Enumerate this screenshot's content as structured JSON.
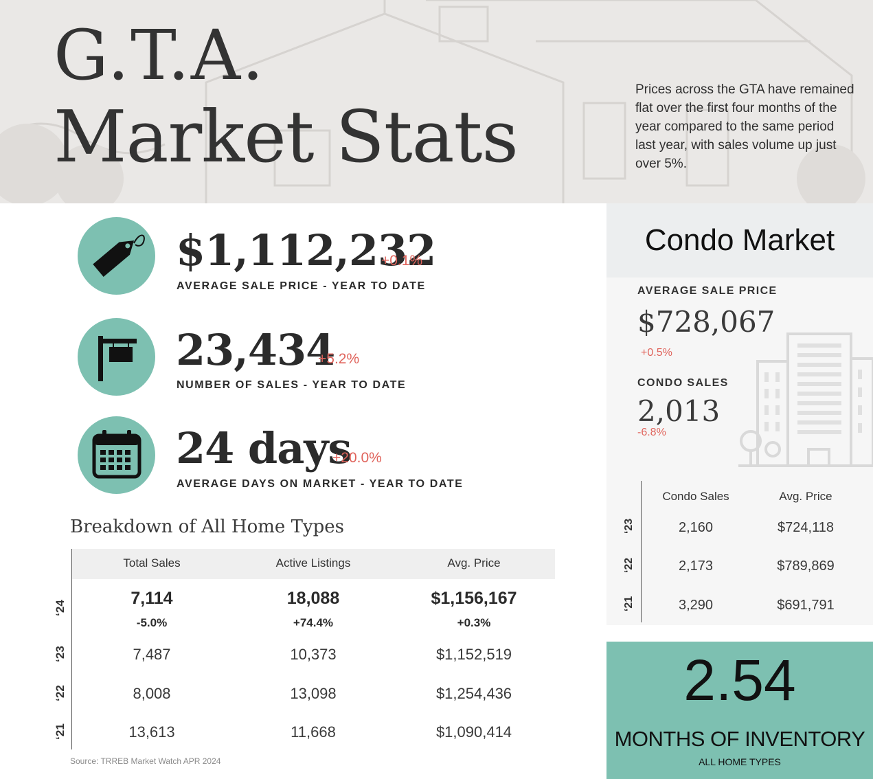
{
  "header": {
    "title_line1": "G.T.A.",
    "title_line2": "Market Stats",
    "intro": "Prices across the GTA have remained flat over the first four months of the year compared to the same period last year, with sales volume up just over 5%."
  },
  "stats": [
    {
      "icon": "price-tag-icon",
      "value": "$1,112,232",
      "change": "+0.1%",
      "label": "AVERAGE SALE PRICE - YEAR TO DATE"
    },
    {
      "icon": "for-sale-sign-icon",
      "value": "23,434",
      "change": "+5.2%",
      "label": "NUMBER OF SALES - YEAR TO DATE"
    },
    {
      "icon": "calendar-icon",
      "value": "24 days",
      "change": "+20.0%",
      "label": "AVERAGE DAYS ON MARKET - YEAR TO DATE"
    }
  ],
  "breakdown": {
    "title": "Breakdown of All Home Types",
    "columns": [
      "Total Sales",
      "Active Listings",
      "Avg. Price"
    ],
    "rows": [
      {
        "year": "‘24",
        "values": [
          "7,114",
          "18,088",
          "$1,156,167"
        ],
        "changes": [
          "-5.0%",
          "+74.4%",
          "+0.3%"
        ]
      },
      {
        "year": "‘23",
        "values": [
          "7,487",
          "10,373",
          "$1,152,519"
        ]
      },
      {
        "year": "‘22",
        "values": [
          "8,008",
          "13,098",
          "$1,254,436"
        ]
      },
      {
        "year": "‘21",
        "values": [
          "13,613",
          "11,668",
          "$1,090,414"
        ]
      }
    ],
    "source": "Source: TRREB Market Watch APR 2024"
  },
  "condo": {
    "title": "Condo Market",
    "avg_price_label": "AVERAGE SALE PRICE",
    "avg_price_value": "$728,067",
    "avg_price_change": "+0.5%",
    "sales_label": "CONDO SALES",
    "sales_value": "2,013",
    "sales_change": "-6.8%",
    "columns": [
      "Condo Sales",
      "Avg. Price"
    ],
    "rows": [
      {
        "year": "‘23",
        "values": [
          "2,160",
          "$724,118"
        ]
      },
      {
        "year": "‘22",
        "values": [
          "2,173",
          "$789,869"
        ]
      },
      {
        "year": "‘21",
        "values": [
          "3,290",
          "$691,791"
        ]
      }
    ]
  },
  "inventory": {
    "value": "2.54",
    "label": "MONTHS OF INVENTORY",
    "sub": "ALL HOME TYPES"
  },
  "colors": {
    "accent_teal": "#7dc0b1",
    "change_red": "#e0645c",
    "text_dark": "#2b2b2b"
  }
}
